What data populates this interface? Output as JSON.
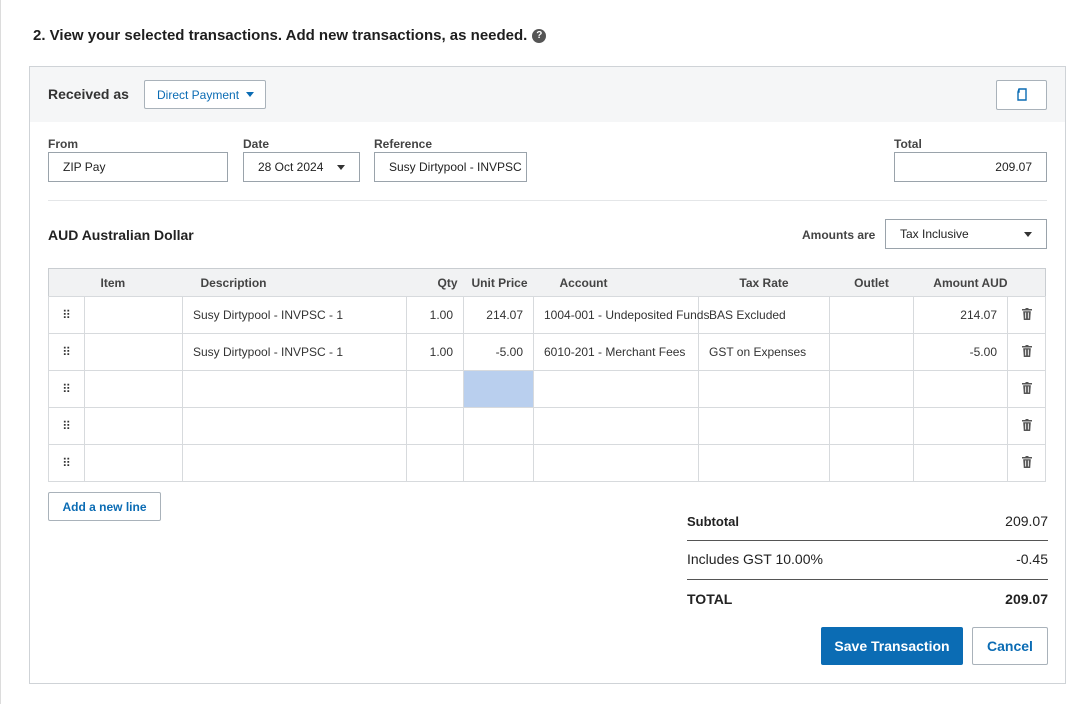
{
  "step_title": "2. View your selected transactions. Add new transactions, as needed.",
  "header": {
    "received_as_label": "Received as",
    "received_as_value": "Direct Payment"
  },
  "fields": {
    "from_label": "From",
    "from_value": "ZIP Pay",
    "date_label": "Date",
    "date_value": "28 Oct 2024",
    "reference_label": "Reference",
    "reference_value": "Susy Dirtypool - INVPSC",
    "total_label": "Total",
    "total_value": "209.07"
  },
  "currency": "AUD Australian Dollar",
  "amounts_are_label": "Amounts are",
  "amounts_are_value": "Tax Inclusive",
  "table": {
    "headers": [
      "Item",
      "Description",
      "Qty",
      "Unit Price",
      "Account",
      "Tax Rate",
      "Outlet",
      "Amount AUD"
    ],
    "rows": [
      {
        "item": "",
        "description": "Susy Dirtypool - INVPSC - 1",
        "qty": "1.00",
        "unit_price": "214.07",
        "account": "1004-001 - Undeposited Funds",
        "tax_rate": "BAS Excluded",
        "outlet": "",
        "amount": "214.07"
      },
      {
        "item": "",
        "description": "Susy Dirtypool - INVPSC - 1",
        "qty": "1.00",
        "unit_price": "-5.00",
        "account": "6010-201 - Merchant Fees",
        "tax_rate": "GST on Expenses",
        "outlet": "",
        "amount": "-5.00"
      },
      {
        "item": "",
        "description": "",
        "qty": "",
        "unit_price": "",
        "account": "",
        "tax_rate": "",
        "outlet": "",
        "amount": ""
      },
      {
        "item": "",
        "description": "",
        "qty": "",
        "unit_price": "",
        "account": "",
        "tax_rate": "",
        "outlet": "",
        "amount": ""
      },
      {
        "item": "",
        "description": "",
        "qty": "",
        "unit_price": "",
        "account": "",
        "tax_rate": "",
        "outlet": "",
        "amount": ""
      }
    ]
  },
  "add_line_label": "Add a new line",
  "summary": {
    "subtotal_label": "Subtotal",
    "subtotal_value": "209.07",
    "gst_label": "Includes GST 10.00%",
    "gst_value": "-0.45",
    "total_label": "TOTAL",
    "total_value": "209.07"
  },
  "actions": {
    "save_label": "Save Transaction",
    "cancel_label": "Cancel"
  },
  "colors": {
    "accent": "#0b6cb4",
    "selected_cell": "#b9cfee"
  },
  "icons": [
    "help-icon",
    "copy-icon",
    "caret-down-icon",
    "drag-handle-icon",
    "trash-icon"
  ]
}
